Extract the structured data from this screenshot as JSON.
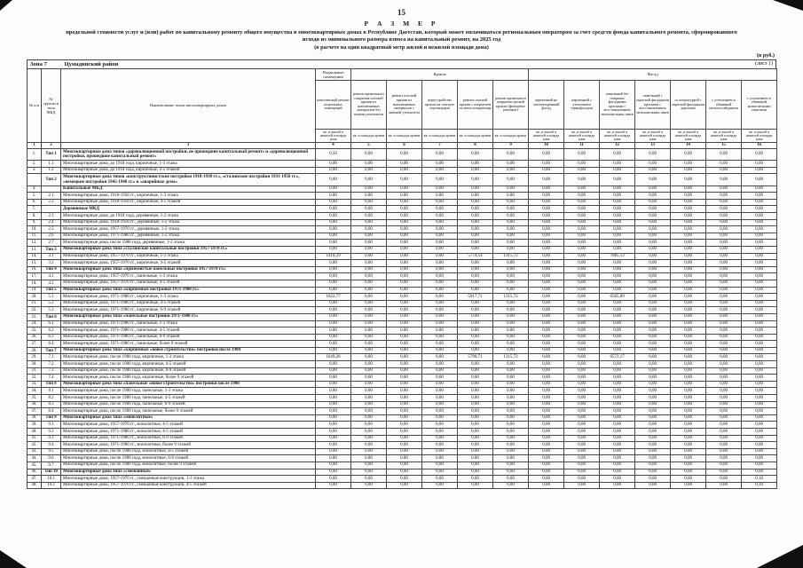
{
  "page": {
    "number": "15"
  },
  "title": {
    "heading": "Р А З М Е Р",
    "text": "предельной стоимости услуг и (или) работ по капитальному ремонту общего имущества в многоквартирных домах в Республике Дагестан, который может оплачиваться региональным оператором за счет средств фонда капитального ремонта, сформированного исходя из минимального размера взноса на капитальный ремонт, на 2025 год",
    "subtitle": "(в расчете на один квадратный метр жилой и нежилой площади дома)"
  },
  "currency_note": "(в руб.)",
  "zone": {
    "label": "Зона 7",
    "district": "Цумадинский район",
    "sheet": "(лист 1)"
  },
  "table": {
    "fixed_headers": [
      "№ п/п",
      "№ группы и типа МКД",
      "Наименование типов многоквартирных домов"
    ],
    "groups": [
      {
        "label": "Подвальные помещения",
        "span": 1
      },
      {
        "label": "Кровля",
        "span": 5
      },
      {
        "label": "Фасад",
        "span": 7
      }
    ],
    "columns": [
      {
        "id": "4",
        "label": "комплексный ремонт подвальных помещений",
        "unit": "кв. м жилой и нежилой площади дома"
      },
      {
        "id": "5",
        "label": "ремонт кровельного покрытия плоской крыши из наплавляемых материалов без замены утеплителя",
        "unit": "кв. м площади кровли"
      },
      {
        "id": "6",
        "label": "ремонт плоской крыши из наплавляемых материалов с заменой утеплителя",
        "unit": "кв. м площади кровли"
      },
      {
        "id": "7",
        "label": "переустройство кровли на скатную стропильную",
        "unit": "кв. м площади кровли"
      },
      {
        "id": "8",
        "label": "ремонт скатной крыши с покрытием из металлочерепицы",
        "unit": "кв. м площади кровли"
      },
      {
        "id": "9",
        "label": "ремонт кровельного покрытия скатной кровли (фальцевое решение)",
        "unit": "кв. м площади кровли"
      },
      {
        "id": "10",
        "label": "кирпичный не оштукатуренный фасад",
        "unit": "кв. м жилой и нежилой площади дома"
      },
      {
        "id": "11",
        "label": "кирпичный с утеплением термофасадом",
        "unit": "кв. м жилой и нежилой площади дома"
      },
      {
        "id": "12",
        "label": "панельный без покраски фасадными красками с восстановлением межпанельных швов",
        "unit": "кв. м жилой и нежилой площади дома"
      },
      {
        "id": "13",
        "label": "панельный с окраской фасадными красками с восстановлением межпанельных швов",
        "unit": "кв. м жилой и нежилой площади дома"
      },
      {
        "id": "14",
        "label": "со штукатуркой с окраской фасадными красками",
        "unit": "кв. м жилой и нежилой площади дома"
      },
      {
        "id": "15",
        "label": "с утеплением и обшивкой металлосайдингом",
        "unit": "кв. м жилой и нежилой площади дома"
      },
      {
        "id": "16",
        "label": "с утеплением и обшивкой композитными панелями",
        "unit": "кв. м жилой и нежилой площади дома"
      }
    ],
    "number_row": [
      "1",
      "2",
      "3",
      "4",
      "5",
      "6",
      "7",
      "8",
      "9",
      "10",
      "11",
      "12",
      "13",
      "14",
      "15",
      "16"
    ],
    "default_value": "0,00",
    "rows": [
      {
        "num": "1.",
        "grp": "Тип 1",
        "bold": true,
        "name": "Многоквартирные дома типов «дореволюционной постройки, не прошедшие капитальный ремонт» и «дореволюционной постройки, прошедшие капитальный ремонт»",
        "vals": {
          "4": "0,50"
        }
      },
      {
        "num": "2.",
        "grp": "1.1",
        "name": "Многоквартирные дома, до 1918 года, кирпичные, 1-3 этажа"
      },
      {
        "num": "3.",
        "grp": "1.2",
        "name": "Многоквартирные дома, до 1918 года, кирпичные, 4-5 этажей"
      },
      {
        "num": "",
        "grp": "Тип 2",
        "bold": true,
        "name": "Многоквартирные дома типов «конструктивистские постройки 1918-1930 гг.», «сталинские постройки 1931-1956 гг.», «немецкие постройки 1945-1948 гг.» и «аварийные дома»"
      },
      {
        "num": "4.",
        "grp": "",
        "bold": true,
        "name": "Капитальные МКД"
      },
      {
        "num": "5.",
        "grp": "2.1",
        "name": "Многоквартирные дома, 1918-1956 гг., кирпичные, 1-3 этажа"
      },
      {
        "num": "6.",
        "grp": "2.2",
        "name": "Многоквартирные дома, 1918-1956 гг., кирпичные, 4-5 этажей"
      },
      {
        "num": "7.",
        "grp": "",
        "bold": true,
        "name": "Деревянные МКД"
      },
      {
        "num": "8.",
        "grp": "2.3",
        "name": "Многоквартирные дома, до 1918 года, деревянные, 1-2 этажа"
      },
      {
        "num": "9.",
        "grp": "2.4",
        "name": "Многоквартирные дома, 1918-1956 гг., деревянные, 1-2 этажа"
      },
      {
        "num": "10.",
        "grp": "2.5",
        "name": "Многоквартирные дома, 1957-1970 гг., деревянные, 1-2 этажа"
      },
      {
        "num": "11.",
        "grp": "2.6",
        "name": "Многоквартирные дома, 1971-1980 гг., деревянные, 1-2 этажа"
      },
      {
        "num": "12.",
        "grp": "2.7",
        "name": "Многоквартирные дома, после 1980 года, деревянные, 1-2 этажа"
      },
      {
        "num": "13.",
        "grp": "Тип 3",
        "bold": true,
        "name": "Многоквартирные дома типа «сталинские капитальные постройки 1957-1970 гг.»"
      },
      {
        "num": "14.",
        "grp": "3.1",
        "name": "Многоквартирные дома, 1957-1970 гг., кирпичные, 1-3 этажа",
        "vals": {
          "4": "1410,29",
          "8": "5774,54",
          "9": "1315,72",
          "12": "7085,13"
        }
      },
      {
        "num": "15.",
        "grp": "3.2",
        "name": "Многоквартирные дома, 1957-1970 гг., кирпичные, 4-5 этажей"
      },
      {
        "num": "16.",
        "grp": "Тип 4",
        "bold": true,
        "name": "Многоквартирные дома типа «приземистые панельные постройки 1957-1970 гг.»"
      },
      {
        "num": "17.",
        "grp": "4.1",
        "name": "Многоквартирные дома, 1957-1970 гг., панельные, 1-3 этажа"
      },
      {
        "num": "18.",
        "grp": "4.2",
        "name": "Многоквартирные дома, 1957-1970 гг., панельные, 4-5 этажей"
      },
      {
        "num": "19.",
        "grp": "Тип 5",
        "bold": true,
        "name": "Многоквартирные дома типа «кирпичные постройки 1971-1980 гг.»"
      },
      {
        "num": "20.",
        "grp": "5.1",
        "name": "Многоквартирные дома, 1971-1980 гг., кирпичные, 1-3 этажа",
        "vals": {
          "4": "1622,77",
          "8": "5917,71",
          "9": "1315,72",
          "12": "6585,89"
        }
      },
      {
        "num": "21.",
        "grp": "5.2",
        "name": "Многоквартирные дома, 1971-1980 гг., кирпичные, 4-5 этажей"
      },
      {
        "num": "22.",
        "grp": "5.3",
        "name": "Многоквартирные дома, 1971-1980 гг., кирпичные, 6-9 этажей"
      },
      {
        "num": "23.",
        "grp": "Тип 6",
        "bold": true,
        "name": "Многоквартирные дома типа «панельные постройки 1971-1980 гг.»"
      },
      {
        "num": "24.",
        "grp": "6.1",
        "name": "Многоквартирные дома, 1971-1980 гг., панельные, 1-3 этажа"
      },
      {
        "num": "25.",
        "grp": "6.2",
        "name": "Многоквартирные дома, 1971-1980 гг., панельные, 4-5 этажей"
      },
      {
        "num": "26.",
        "grp": "6.3",
        "name": "Многоквартирные дома, 1971-1980 гг., панельные, 6-9 этажей"
      },
      {
        "num": "27.",
        "grp": "6.4",
        "name": "Многоквартирные дома, 1971-1980 гг., панельные, более 9 этажей"
      },
      {
        "num": "28.",
        "grp": "Тип 7",
        "bold": true,
        "name": "Многоквартирные дома типа «кирпичные «новое строительство» постройки после 1980"
      },
      {
        "num": "29.",
        "grp": "7.1",
        "name": "Многоквартирные дома, после 1980 года, кирпичные, 1-3 этажа",
        "vals": {
          "4": "1649,26",
          "8": "5790,71",
          "9": "1315,72",
          "12": "6572,17"
        }
      },
      {
        "num": "30.",
        "grp": "7.2",
        "name": "Многоквартирные дома, после 1980 года, кирпичные, 4-5 этажей"
      },
      {
        "num": "31.",
        "grp": "7.3",
        "name": "Многоквартирные дома, после 1980 года, кирпичные, 6-9 этажей"
      },
      {
        "num": "32.",
        "grp": "7.4",
        "name": "Многоквартирные дома, после 1980 года, кирпичные, более 9 этажей"
      },
      {
        "num": "33.",
        "grp": "Тип 8",
        "bold": true,
        "name": "Многоквартирные дома типа «панельные «новое строительство» постройки после 1980"
      },
      {
        "num": "34.",
        "grp": "8.1",
        "name": "Многоквартирные дома, после 1980 года, панельные, 1-3 этажа"
      },
      {
        "num": "35.",
        "grp": "8.2",
        "name": "Многоквартирные дома, после 1980 года, панельные, 4-5 этажей"
      },
      {
        "num": "36.",
        "grp": "8.3",
        "name": "Многоквартирные дома, после 1980 года, панельные, 6-9 этажей"
      },
      {
        "num": "37.",
        "grp": "8.4",
        "name": "Многоквартирные дома, после 1980 года, панельные, более 9 этажей"
      },
      {
        "num": "38.",
        "grp": "Тип 9",
        "bold": true,
        "name": "Многоквартирные дома типа «монолитные»"
      },
      {
        "num": "39.",
        "grp": "9.1",
        "name": "Многоквартирные дома, 1957-1970 гг., монолитные, 4-5 этажей"
      },
      {
        "num": "40.",
        "grp": "9.2",
        "name": "Многоквартирные дома, 1971-1980 гг., монолитные, 4-5 этажей"
      },
      {
        "num": "41.",
        "grp": "9.3",
        "name": "Многоквартирные дома, 1971-1980 гг., монолитные, 6-9 этажей"
      },
      {
        "num": "42.",
        "grp": "9.4",
        "name": "Многоквартирные дома, 1971-1980 гг., монолитные, более 9 этажей"
      },
      {
        "num": "43.",
        "grp": "9.5",
        "name": "Многоквартирные дома, после 1980 года, монолитные, 4-5 этажей"
      },
      {
        "num": "44.",
        "grp": "9.6",
        "name": "Многоквартирные дома, после 1980 года, монолитные, 6-9 этажей"
      },
      {
        "num": "45.",
        "grp": "9.7",
        "name": "Многоквартирные дома, после 1980 года, монолитные, более 9 этажей"
      },
      {
        "num": "46.",
        "grp": "Тип 10",
        "bold": true,
        "name": "Многоквартирные дома типа «смешанные»"
      },
      {
        "num": "47.",
        "grp": "10.1",
        "name": "Многоквартирные дома, 1957-1970 гг., смешанные конструкции, 1-3 этажа",
        "vals": {
          "16": "0,10"
        }
      },
      {
        "num": "48.",
        "grp": "10.2",
        "name": "Многоквартирные дома, 1957-1970 гг., смешанные конструкции, 4-5 этажей",
        "vals": {
          "16": "0,10"
        }
      }
    ]
  }
}
